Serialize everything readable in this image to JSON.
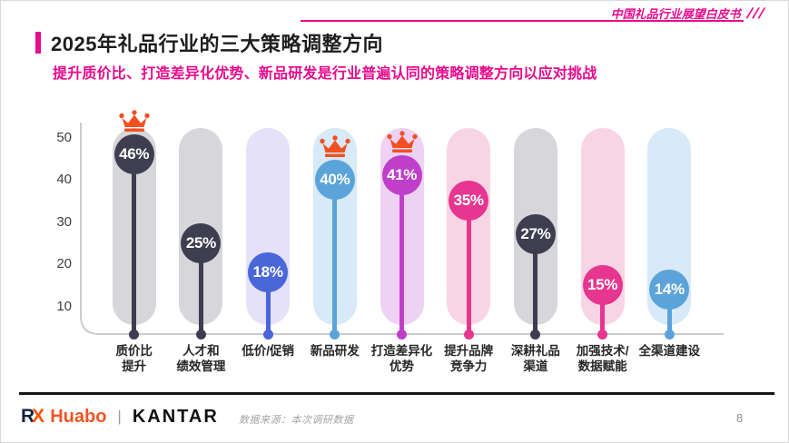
{
  "header": {
    "watermark": "中国礼品行业展望白皮书",
    "watermark_slashes": "///",
    "title": "2025年礼品行业的三大策略调整方向",
    "subtitle": "提升质价比、打造差异化优势、新品研发是行业普遍认同的策略调整方向以应对挑战",
    "accent_color": "#e80b8c"
  },
  "chart_data": {
    "type": "bar",
    "variant": "lollipop-pill",
    "title": "2025年礼品行业的三大策略调整方向",
    "unit": "%",
    "categories": [
      "质价比提升",
      "人才和绩效管理",
      "低价/促销",
      "新品研发",
      "打造差异化优势",
      "提升品牌竞争力",
      "深耕礼品渠道",
      "加强技术/数据赋能",
      "全渠道建设"
    ],
    "category_lines": [
      [
        "质价比",
        "提升"
      ],
      [
        "人才和",
        "绩效管理"
      ],
      [
        "低价/促销"
      ],
      [
        "新品研发"
      ],
      [
        "打造差异化",
        "优势"
      ],
      [
        "提升品牌",
        "竞争力"
      ],
      [
        "深耕礼品",
        "渠道"
      ],
      [
        "加强技术/",
        "数据赋能"
      ],
      [
        "全渠道建设"
      ]
    ],
    "values": [
      46,
      25,
      18,
      40,
      41,
      35,
      27,
      15,
      14
    ],
    "crowned": [
      true,
      false,
      false,
      true,
      true,
      false,
      false,
      false,
      false
    ],
    "marker_colors": [
      "#3e3e50",
      "#3e3e50",
      "#4a67da",
      "#5ba4da",
      "#bf3fcb",
      "#e6368f",
      "#3e3e50",
      "#e6368f",
      "#5ba4da"
    ],
    "track_colors": [
      "#d7d6da",
      "#d7d6da",
      "#e4e1f8",
      "#d8e9f7",
      "#eed2f3",
      "#f8d5e5",
      "#d7d6da",
      "#f8d5e5",
      "#d8e9f7"
    ],
    "yticks": [
      10,
      20,
      30,
      40,
      50
    ],
    "ylim": [
      0,
      52
    ],
    "grid": false,
    "legend": false,
    "crown_color": "#f25022",
    "axis_color": "#cbcbcf",
    "xlabel": "",
    "ylabel": ""
  },
  "footer": {
    "logo_rx_r": "R",
    "logo_rx_x": "X",
    "logo_huabo": "Huabo",
    "logo_separator": "|",
    "logo_kantar": "KANTAR",
    "source": "数据来源：本次调研数据",
    "page_number": "8"
  }
}
